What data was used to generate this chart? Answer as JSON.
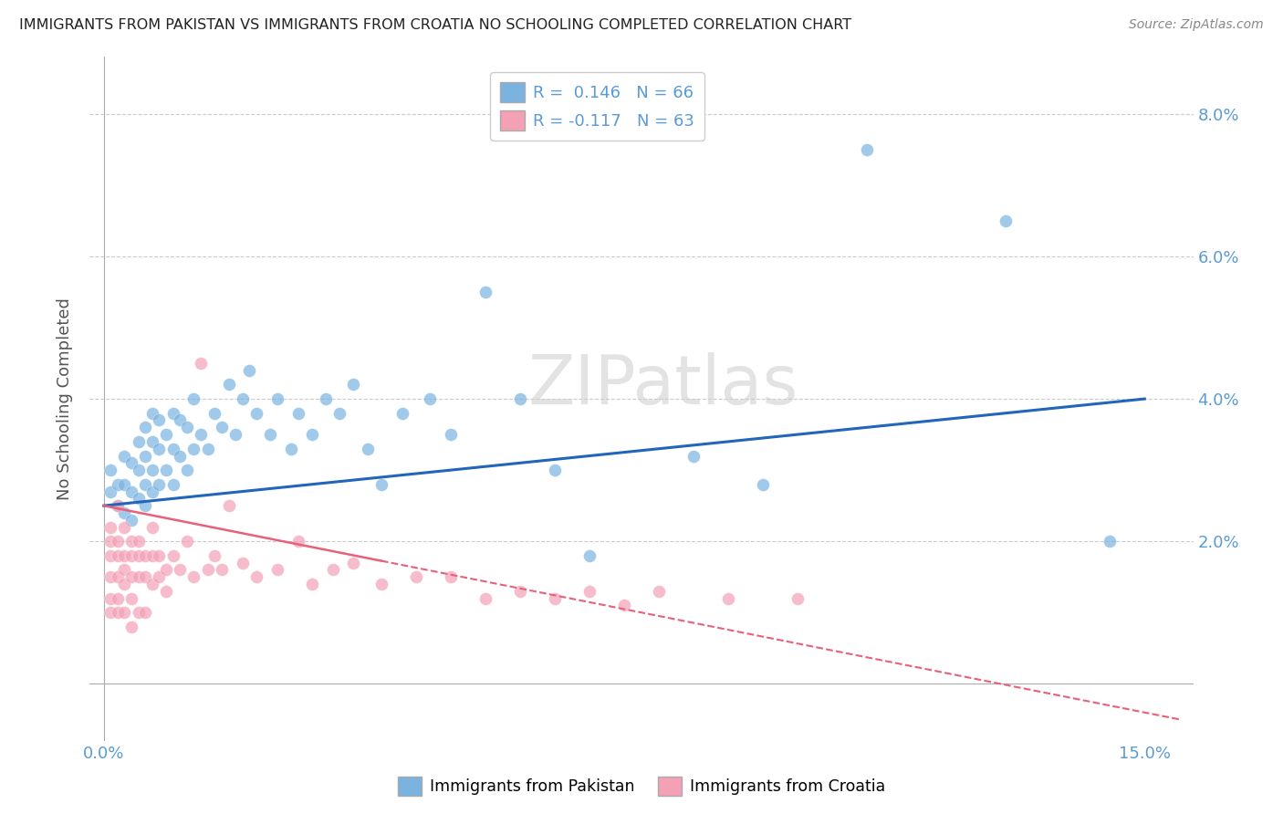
{
  "title": "IMMIGRANTS FROM PAKISTAN VS IMMIGRANTS FROM CROATIA NO SCHOOLING COMPLETED CORRELATION CHART",
  "source": "Source: ZipAtlas.com",
  "xlim": [
    -0.002,
    0.157
  ],
  "ylim": [
    -0.008,
    0.088
  ],
  "pakistan_color": "#7ab3e0",
  "croatia_color": "#f4a0b5",
  "pakistan_line_color": "#2266bb",
  "croatia_line_color": "#e8607a",
  "pakistan_R": 0.146,
  "pakistan_N": 66,
  "croatia_R": -0.117,
  "croatia_N": 63,
  "pakistan_x": [
    0.001,
    0.001,
    0.002,
    0.002,
    0.003,
    0.003,
    0.003,
    0.004,
    0.004,
    0.004,
    0.005,
    0.005,
    0.005,
    0.006,
    0.006,
    0.006,
    0.006,
    0.007,
    0.007,
    0.007,
    0.007,
    0.008,
    0.008,
    0.008,
    0.009,
    0.009,
    0.01,
    0.01,
    0.01,
    0.011,
    0.011,
    0.012,
    0.012,
    0.013,
    0.013,
    0.014,
    0.015,
    0.016,
    0.017,
    0.018,
    0.019,
    0.02,
    0.021,
    0.022,
    0.024,
    0.025,
    0.027,
    0.028,
    0.03,
    0.032,
    0.034,
    0.036,
    0.038,
    0.04,
    0.043,
    0.047,
    0.05,
    0.055,
    0.06,
    0.065,
    0.07,
    0.085,
    0.095,
    0.11,
    0.13,
    0.145
  ],
  "pakistan_y": [
    0.027,
    0.03,
    0.025,
    0.028,
    0.024,
    0.028,
    0.032,
    0.023,
    0.027,
    0.031,
    0.026,
    0.03,
    0.034,
    0.025,
    0.028,
    0.032,
    0.036,
    0.027,
    0.03,
    0.034,
    0.038,
    0.028,
    0.033,
    0.037,
    0.03,
    0.035,
    0.028,
    0.033,
    0.038,
    0.032,
    0.037,
    0.03,
    0.036,
    0.033,
    0.04,
    0.035,
    0.033,
    0.038,
    0.036,
    0.042,
    0.035,
    0.04,
    0.044,
    0.038,
    0.035,
    0.04,
    0.033,
    0.038,
    0.035,
    0.04,
    0.038,
    0.042,
    0.033,
    0.028,
    0.038,
    0.04,
    0.035,
    0.055,
    0.04,
    0.03,
    0.018,
    0.032,
    0.028,
    0.075,
    0.065,
    0.02
  ],
  "croatia_x": [
    0.001,
    0.001,
    0.001,
    0.001,
    0.001,
    0.001,
    0.002,
    0.002,
    0.002,
    0.002,
    0.002,
    0.002,
    0.003,
    0.003,
    0.003,
    0.003,
    0.003,
    0.004,
    0.004,
    0.004,
    0.004,
    0.004,
    0.005,
    0.005,
    0.005,
    0.005,
    0.006,
    0.006,
    0.006,
    0.007,
    0.007,
    0.007,
    0.008,
    0.008,
    0.009,
    0.009,
    0.01,
    0.011,
    0.012,
    0.013,
    0.014,
    0.015,
    0.016,
    0.017,
    0.018,
    0.02,
    0.022,
    0.025,
    0.028,
    0.03,
    0.033,
    0.036,
    0.04,
    0.045,
    0.05,
    0.055,
    0.06,
    0.065,
    0.07,
    0.075,
    0.08,
    0.09,
    0.1
  ],
  "croatia_y": [
    0.02,
    0.022,
    0.018,
    0.015,
    0.012,
    0.01,
    0.025,
    0.02,
    0.018,
    0.015,
    0.012,
    0.01,
    0.022,
    0.018,
    0.016,
    0.014,
    0.01,
    0.02,
    0.018,
    0.015,
    0.012,
    0.008,
    0.02,
    0.018,
    0.015,
    0.01,
    0.018,
    0.015,
    0.01,
    0.022,
    0.018,
    0.014,
    0.018,
    0.015,
    0.016,
    0.013,
    0.018,
    0.016,
    0.02,
    0.015,
    0.045,
    0.016,
    0.018,
    0.016,
    0.025,
    0.017,
    0.015,
    0.016,
    0.02,
    0.014,
    0.016,
    0.017,
    0.014,
    0.015,
    0.015,
    0.012,
    0.013,
    0.012,
    0.013,
    0.011,
    0.013,
    0.012,
    0.012
  ],
  "watermark": "ZIPatlas",
  "legend_pakistan_label": "Immigrants from Pakistan",
  "legend_croatia_label": "Immigrants from Croatia",
  "ylabel": "No Schooling Completed",
  "grid_color": "#cccccc",
  "title_color": "#333333",
  "tick_label_color": "#5b9bd5",
  "pak_line_x": [
    0.0,
    0.15
  ],
  "pak_line_y": [
    0.025,
    0.04
  ],
  "cro_line_x": [
    0.0,
    0.155
  ],
  "cro_line_y": [
    0.025,
    -0.005
  ]
}
